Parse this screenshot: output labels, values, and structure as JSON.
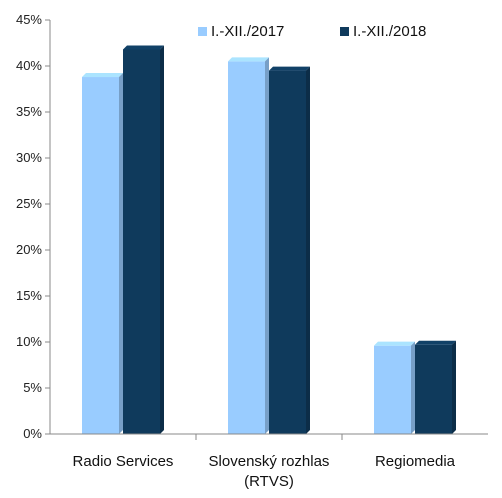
{
  "chart_data": {
    "type": "bar",
    "title": "",
    "xlabel": "",
    "ylabel": "",
    "categories": [
      [
        "Radio Services"
      ],
      [
        "Slovenský rozhlas",
        "(RTVS)"
      ],
      [
        "Regiomedia"
      ]
    ],
    "series": [
      {
        "name": "I.-XII./2017",
        "color": "#99ccff",
        "values": [
          38.8,
          40.5,
          9.6
        ]
      },
      {
        "name": "I.-XII./2018",
        "color": "#0f3a5c",
        "values": [
          41.8,
          39.5,
          9.7
        ]
      }
    ],
    "ylim": [
      0,
      45
    ],
    "yticks": [
      "0%",
      "5%",
      "10%",
      "15%",
      "20%",
      "25%",
      "30%",
      "35%",
      "40%",
      "45%"
    ],
    "grid": false,
    "legend_position": "top-right",
    "bar_style": "3d"
  }
}
